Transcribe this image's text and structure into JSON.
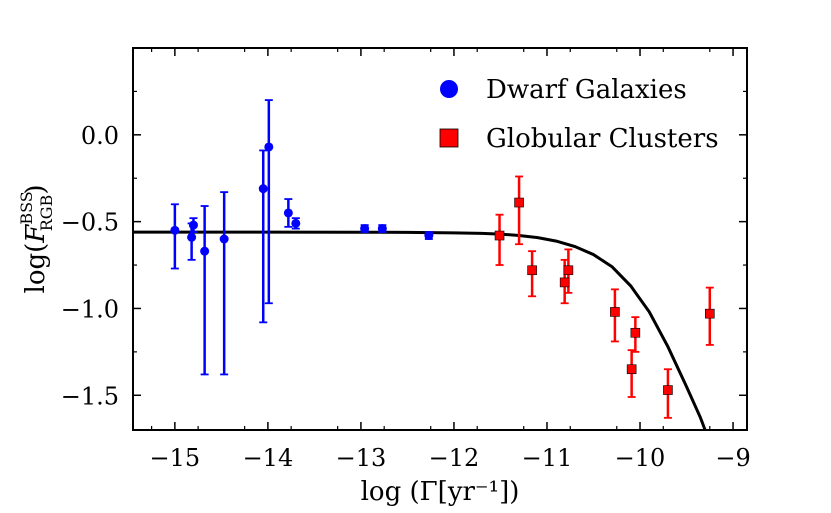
{
  "chart_data": {
    "type": "scatter",
    "xlabel": "log (Γ[yr⁻¹])",
    "ylabel_main": "log(",
    "ylabel_symbol": "F",
    "ylabel_sup": "BSS",
    "ylabel_sub": "RGB",
    "ylabel_close": ")",
    "xlim": [
      -15.45,
      -8.85
    ],
    "ylim": [
      -1.7,
      0.5
    ],
    "xticks": [
      -15,
      -14,
      -13,
      -12,
      -11,
      -10,
      -9
    ],
    "xtick_labels": [
      "−15",
      "−14",
      "−13",
      "−12",
      "−11",
      "−10",
      "−9"
    ],
    "yticks": [
      0.0,
      -0.5,
      -1.0,
      -1.5
    ],
    "ytick_labels": [
      "0.0",
      "−0.5",
      "−1.0",
      "−1.5"
    ],
    "legend_position": "top-right",
    "series": [
      {
        "name": "Dwarf Galaxies",
        "marker": "circle",
        "color": "#0000ff",
        "points": [
          {
            "x": -15.0,
            "y": -0.55,
            "ylo": -0.77,
            "yhi": -0.4
          },
          {
            "x": -14.82,
            "y": -0.59,
            "ylo": -0.72,
            "yhi": -0.51
          },
          {
            "x": -14.8,
            "y": -0.52,
            "ylo": -0.56,
            "yhi": -0.48
          },
          {
            "x": -14.68,
            "y": -0.67,
            "ylo": -1.38,
            "yhi": -0.41
          },
          {
            "x": -14.47,
            "y": -0.6,
            "ylo": -1.38,
            "yhi": -0.33
          },
          {
            "x": -14.05,
            "y": -0.31,
            "ylo": -1.08,
            "yhi": -0.09
          },
          {
            "x": -13.99,
            "y": -0.07,
            "ylo": -0.97,
            "yhi": 0.2
          },
          {
            "x": -13.78,
            "y": -0.45,
            "ylo": -0.53,
            "yhi": -0.37
          },
          {
            "x": -13.7,
            "y": -0.51,
            "ylo": -0.54,
            "yhi": -0.48
          },
          {
            "x": -12.96,
            "y": -0.54,
            "ylo": -0.56,
            "yhi": -0.52
          },
          {
            "x": -12.77,
            "y": -0.54,
            "ylo": -0.56,
            "yhi": -0.52
          },
          {
            "x": -12.27,
            "y": -0.58,
            "ylo": -0.6,
            "yhi": -0.56
          }
        ]
      },
      {
        "name": "Globular Clusters",
        "marker": "square",
        "color": "#ff0000",
        "points": [
          {
            "x": -11.51,
            "y": -0.58,
            "ylo": -0.75,
            "yhi": -0.46
          },
          {
            "x": -11.3,
            "y": -0.39,
            "ylo": -0.63,
            "yhi": -0.24
          },
          {
            "x": -11.16,
            "y": -0.78,
            "ylo": -0.93,
            "yhi": -0.67
          },
          {
            "x": -10.81,
            "y": -0.85,
            "ylo": -0.97,
            "yhi": -0.72
          },
          {
            "x": -10.77,
            "y": -0.78,
            "ylo": -0.91,
            "yhi": -0.66
          },
          {
            "x": -10.27,
            "y": -1.02,
            "ylo": -1.19,
            "yhi": -0.89
          },
          {
            "x": -10.09,
            "y": -1.35,
            "ylo": -1.51,
            "yhi": -1.24
          },
          {
            "x": -10.05,
            "y": -1.14,
            "ylo": -1.25,
            "yhi": -1.05
          },
          {
            "x": -9.7,
            "y": -1.47,
            "ylo": -1.63,
            "yhi": -1.35
          },
          {
            "x": -9.25,
            "y": -1.03,
            "ylo": -1.21,
            "yhi": -0.88
          }
        ]
      }
    ],
    "model_curve": {
      "name": "model",
      "color": "#000000",
      "points": [
        {
          "x": -15.45,
          "y": -0.56
        },
        {
          "x": -14.0,
          "y": -0.56
        },
        {
          "x": -13.0,
          "y": -0.561
        },
        {
          "x": -12.5,
          "y": -0.562
        },
        {
          "x": -12.0,
          "y": -0.565
        },
        {
          "x": -11.7,
          "y": -0.568
        },
        {
          "x": -11.5,
          "y": -0.572
        },
        {
          "x": -11.3,
          "y": -0.58
        },
        {
          "x": -11.1,
          "y": -0.592
        },
        {
          "x": -10.9,
          "y": -0.612
        },
        {
          "x": -10.7,
          "y": -0.643
        },
        {
          "x": -10.5,
          "y": -0.69
        },
        {
          "x": -10.3,
          "y": -0.76
        },
        {
          "x": -10.1,
          "y": -0.87
        },
        {
          "x": -9.9,
          "y": -1.02
        },
        {
          "x": -9.7,
          "y": -1.22
        },
        {
          "x": -9.5,
          "y": -1.45
        },
        {
          "x": -9.35,
          "y": -1.63
        },
        {
          "x": -9.3,
          "y": -1.7
        }
      ]
    }
  }
}
